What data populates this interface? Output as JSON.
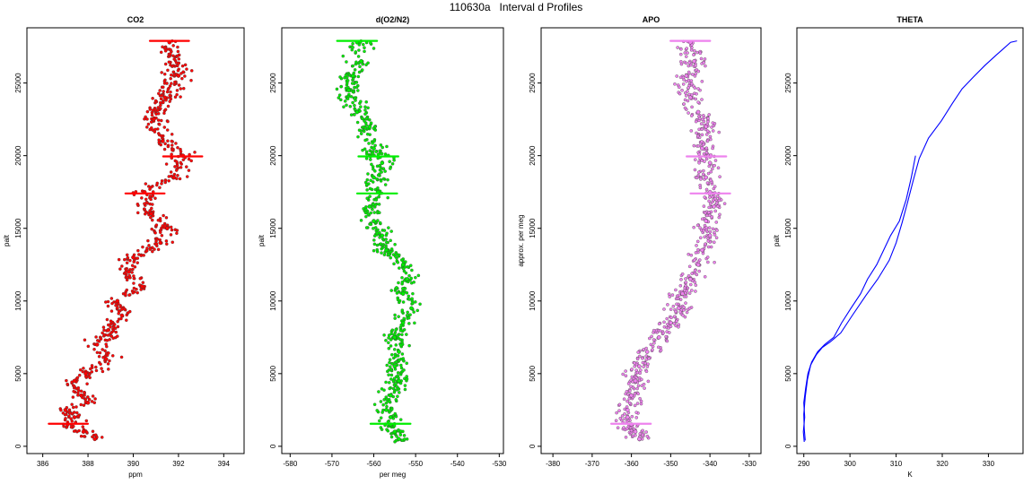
{
  "figure": {
    "title": "110630a   Interval d Profiles"
  },
  "chart_data": [
    {
      "type": "scatter",
      "title": "CO2",
      "xlabel": "ppm",
      "ylabel": "palt",
      "xlim": [
        385.3,
        394.9
      ],
      "ylim": [
        -500,
        28800
      ],
      "xticks": [
        "386",
        "388",
        "390",
        "392",
        "394"
      ],
      "yticks": [
        "0",
        "5000",
        "10000",
        "15000",
        "20000",
        "25000"
      ],
      "color": "#ff0000",
      "x": [
        391.6,
        392.0,
        391.4,
        390.9,
        391.3,
        392.2,
        391.8,
        390.5,
        390.8,
        391.5,
        391.2,
        390.0,
        389.8,
        390.4,
        389.3,
        389.5,
        388.9,
        388.4,
        388.8,
        387.9,
        387.4,
        387.7,
        388.0,
        387.0,
        387.4,
        387.1,
        387.8,
        388.3
      ],
      "y": [
        27800,
        25500,
        24000,
        22500,
        21000,
        20000,
        18500,
        17500,
        16000,
        15000,
        14000,
        13000,
        12000,
        11000,
        10000,
        9000,
        8000,
        7000,
        6000,
        5000,
        4500,
        3500,
        3000,
        2500,
        2000,
        1500,
        1000,
        500
      ]
    },
    {
      "type": "scatter",
      "title": "d(O2/N2)",
      "xlabel": "per meg",
      "ylabel": "palt",
      "xlim": [
        -582,
        -529
      ],
      "ylim": [
        -500,
        28800
      ],
      "xticks": [
        "-580",
        "-570",
        "-560",
        "-550",
        "-540",
        "-530"
      ],
      "yticks": [
        "0",
        "5000",
        "10000",
        "15000",
        "20000",
        "25000"
      ],
      "color": "#00ee00",
      "x": [
        -564,
        -563,
        -565,
        -566,
        -564,
        -561,
        -560,
        -558,
        -560,
        -559,
        -561,
        -560,
        -558,
        -557,
        -553,
        -552,
        -553,
        -551,
        -553,
        -555,
        -554,
        -555,
        -554,
        -556,
        -557,
        -556,
        -556,
        -555,
        -554
      ],
      "y": [
        27800,
        26500,
        25500,
        24500,
        23000,
        22000,
        20500,
        19500,
        18500,
        17500,
        16500,
        15500,
        14500,
        13500,
        12500,
        11500,
        10500,
        9500,
        8500,
        7500,
        6500,
        5500,
        4500,
        3500,
        2500,
        2000,
        1500,
        1000,
        500
      ]
    },
    {
      "type": "scatter",
      "title": "APO",
      "xlabel": "",
      "ylabel": "approx. per meg",
      "xlim": [
        -383,
        -327
      ],
      "ylim": [
        -500,
        28800
      ],
      "xticks": [
        "-380",
        "-370",
        "-360",
        "-350",
        "-340",
        "-330"
      ],
      "yticks": [
        "0",
        "5000",
        "10000",
        "15000",
        "20000",
        "25000"
      ],
      "color": "#ee82ee",
      "x": [
        -345,
        -344,
        -346,
        -345,
        -343,
        -341,
        -342,
        -340,
        -341,
        -340,
        -339,
        -341,
        -340,
        -342,
        -343,
        -345,
        -347,
        -348,
        -350,
        -353,
        -356,
        -358,
        -359,
        -360,
        -361,
        -361,
        -360,
        -359,
        -358
      ],
      "y": [
        27800,
        26500,
        25500,
        24000,
        23000,
        22000,
        20500,
        19500,
        18500,
        17500,
        16500,
        15500,
        14500,
        13500,
        12500,
        11500,
        10500,
        9500,
        8500,
        7500,
        6500,
        5500,
        4500,
        3500,
        2500,
        2000,
        1500,
        1000,
        500
      ]
    },
    {
      "type": "line",
      "title": "THETA",
      "xlabel": "K",
      "ylabel": "palt",
      "xlim": [
        288.5,
        337.5
      ],
      "ylim": [
        -500,
        28800
      ],
      "xticks": [
        "290",
        "300",
        "310",
        "320",
        "330"
      ],
      "yticks": [
        "0",
        "5000",
        "10000",
        "15000",
        "20000",
        "25000"
      ],
      "color": "#0000ff",
      "series": [
        {
          "values_x": [
            290.1,
            289.9,
            290.2,
            290.0,
            290.4,
            290.9,
            291.7,
            293.0,
            294.5,
            296.5,
            298.2,
            300.2,
            302.3,
            303.8,
            305.8,
            307.3,
            308.8,
            310.7,
            312.2,
            313.3,
            314.2
          ],
          "values_y": [
            300,
            1000,
            2000,
            3000,
            4000,
            5000,
            5800,
            6500,
            7000,
            7500,
            8500,
            9500,
            10500,
            11500,
            12500,
            13500,
            14500,
            15500,
            17000,
            18500,
            20000
          ]
        },
        {
          "values_x": [
            290.3,
            290.1,
            290.0,
            290.3,
            290.8,
            291.5,
            292.7,
            294.0,
            295.8,
            298.0,
            300.5,
            303.5,
            306.0,
            308.5,
            310.0,
            311.3,
            312.5,
            313.8,
            315.0,
            317.0,
            319.8,
            322.2,
            324.3,
            326.7,
            329.2,
            331.6,
            333.4,
            334.8,
            336.2
          ],
          "values_y": [
            400,
            1200,
            2200,
            3400,
            4600,
            5600,
            6300,
            6800,
            7200,
            7800,
            9000,
            10400,
            11500,
            12800,
            14000,
            15400,
            16800,
            18400,
            19800,
            21200,
            22400,
            23600,
            24600,
            25400,
            26200,
            26900,
            27400,
            27800,
            27900
          ]
        }
      ]
    }
  ]
}
